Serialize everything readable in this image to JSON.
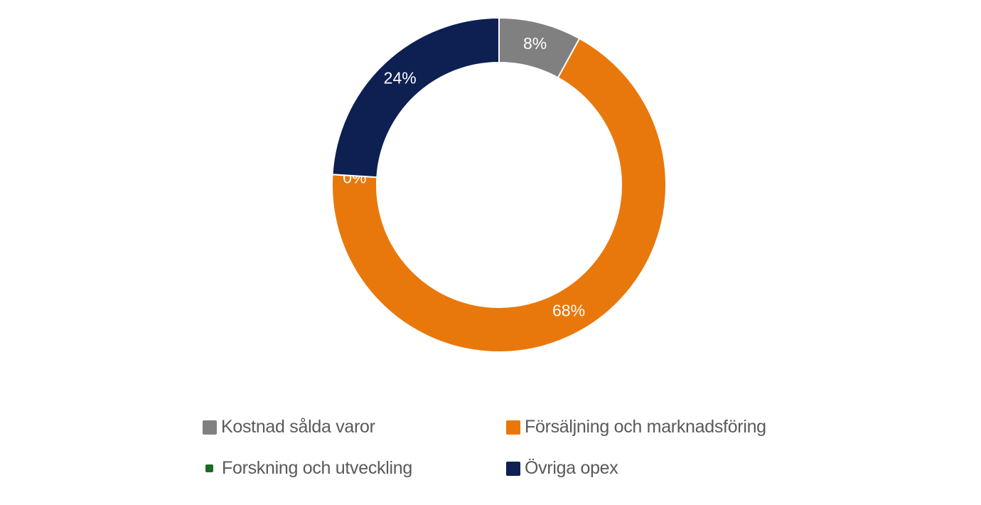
{
  "chart_data": {
    "type": "pie",
    "variant": "donut",
    "categories": [
      "Kostnad sålda varor",
      "Försäljning och marknadsföring",
      "Forskning och utveckling",
      "Övriga opex"
    ],
    "values": [
      8,
      68,
      0,
      24
    ],
    "data_labels": [
      "8%",
      "68%",
      "0%",
      "24%"
    ],
    "colors": [
      "#808080",
      "#E9780C",
      "#1E6B23",
      "#0E1F52"
    ],
    "start_angle_deg": 0,
    "direction": "clockwise",
    "legend_placement": "bottom",
    "title": ""
  }
}
